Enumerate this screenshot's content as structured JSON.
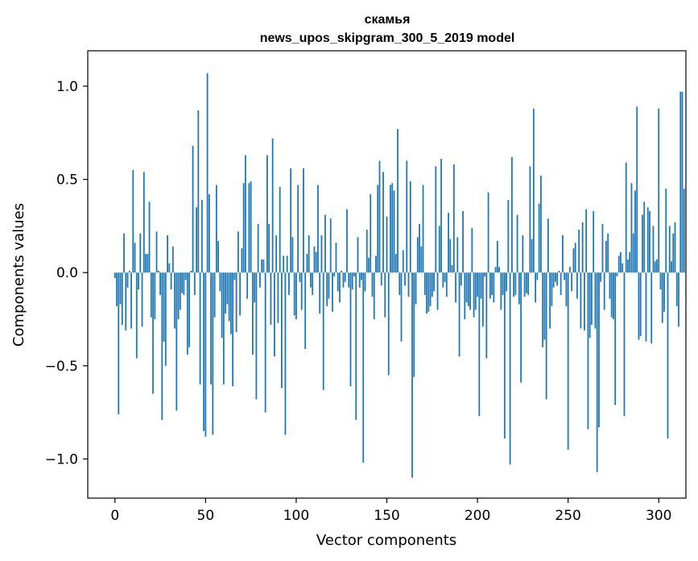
{
  "chart_data": {
    "type": "bar",
    "title": "скамья",
    "subtitle": "news_upos_skipgram_300_5_2019 model",
    "xlabel": "Vector components",
    "ylabel": "Components values",
    "xlim": [
      -15,
      315
    ],
    "ylim": [
      -1.21,
      1.19
    ],
    "xticks": [
      0,
      50,
      100,
      150,
      200,
      250,
      300
    ],
    "yticks": [
      1.0,
      0.5,
      0.0,
      -0.5,
      -1.0
    ],
    "ytick_labels": [
      "1.0",
      "0.5",
      "0.0",
      "−0.5",
      "−1.0"
    ],
    "grid": false,
    "legend": "none",
    "bar_color": "#1f77b4",
    "values": [
      -0.03,
      -0.18,
      -0.76,
      -0.17,
      -0.28,
      0.21,
      -0.31,
      -0.08,
      0.01,
      -0.3,
      0.55,
      0.16,
      -0.46,
      -0.09,
      0.21,
      -0.29,
      0.54,
      0.1,
      0.1,
      0.38,
      -0.24,
      -0.65,
      -0.25,
      0.22,
      0.01,
      -0.12,
      -0.79,
      -0.37,
      -0.5,
      0.2,
      0.05,
      -0.09,
      0.14,
      -0.3,
      -0.74,
      -0.25,
      -0.2,
      -0.11,
      -0.12,
      -0.04,
      -0.44,
      -0.4,
      0.01,
      0.68,
      -0.12,
      0.35,
      0.87,
      -0.6,
      0.39,
      -0.85,
      -0.88,
      1.07,
      0.42,
      -0.6,
      -0.87,
      -0.24,
      0.47,
      0.17,
      -0.1,
      -0.35,
      -0.6,
      -0.22,
      -0.17,
      -0.26,
      -0.33,
      -0.61,
      -0.04,
      -0.32,
      0.22,
      -0.23,
      0.13,
      0.48,
      0.63,
      -0.14,
      0.48,
      0.49,
      -0.44,
      -0.16,
      -0.68,
      0.26,
      -0.08,
      0.07,
      0.07,
      -0.75,
      0.63,
      0.26,
      -0.28,
      0.72,
      -0.45,
      0.2,
      -0.27,
      0.46,
      -0.62,
      0.09,
      -0.87,
      0.09,
      -0.12,
      0.56,
      0.19,
      -0.23,
      -0.25,
      0.47,
      -0.05,
      -0.2,
      0.56,
      -0.41,
      0.1,
      0.2,
      -0.08,
      -0.12,
      0.14,
      0.11,
      0.47,
      -0.22,
      0.2,
      -0.63,
      0.31,
      -0.18,
      -0.14,
      0.29,
      -0.21,
      -0.02,
      0.16,
      -0.1,
      -0.16,
      0.01,
      -0.08,
      -0.05,
      0.34,
      -0.08,
      -0.61,
      -0.09,
      -0.02,
      -0.79,
      0.19,
      -0.08,
      -0.04,
      -1.02,
      -0.1,
      0.23,
      0.08,
      0.42,
      -0.13,
      -0.25,
      0.09,
      0.47,
      0.6,
      -0.07,
      0.54,
      -0.24,
      0.3,
      -0.55,
      0.47,
      0.48,
      0.44,
      0.1,
      0.77,
      -0.12,
      -0.37,
      0.12,
      -0.07,
      0.6,
      -0.13,
      0.49,
      -1.1,
      -0.56,
      -0.17,
      0.19,
      0.26,
      0.14,
      0.47,
      -0.12,
      -0.22,
      -0.21,
      -0.18,
      -0.13,
      -0.1,
      0.57,
      -0.2,
      0.25,
      0.61,
      -0.08,
      -0.05,
      -0.13,
      0.32,
      0.18,
      0.04,
      0.58,
      -0.16,
      0.19,
      -0.45,
      -0.07,
      0.33,
      -0.25,
      -0.16,
      -0.18,
      -0.2,
      0.24,
      -0.24,
      -0.2,
      -0.13,
      -0.77,
      -0.14,
      -0.29,
      -0.02,
      -0.46,
      0.43,
      -0.14,
      -0.12,
      -0.16,
      0.03,
      0.17,
      0.03,
      -0.2,
      -0.12,
      -0.89,
      -0.1,
      0.39,
      -1.03,
      0.62,
      -0.13,
      -0.12,
      0.31,
      -0.17,
      -0.59,
      0.2,
      -0.13,
      -0.11,
      -0.12,
      0.57,
      0.18,
      0.88,
      -0.16,
      -0.04,
      0.37,
      0.52,
      -0.4,
      -0.36,
      -0.68,
      0.29,
      -0.3,
      -0.18,
      -0.08,
      -0.05,
      -0.07,
      0.01,
      -0.12,
      0.2,
      -0.04,
      -0.18,
      -0.95,
      0.03,
      -0.1,
      0.13,
      0.16,
      -0.14,
      0.23,
      -0.3,
      0.27,
      -0.31,
      0.34,
      -0.84,
      -0.35,
      -0.28,
      0.33,
      -0.3,
      -1.07,
      -0.83,
      -0.05,
      0.26,
      -0.2,
      0.17,
      0.21,
      -0.14,
      -0.24,
      -0.25,
      -0.71,
      -0.02,
      0.09,
      0.11,
      0.05,
      -0.77,
      0.59,
      0.07,
      0.11,
      0.48,
      0.21,
      0.44,
      0.89,
      -0.36,
      -0.34,
      0.31,
      0.38,
      -0.37,
      0.35,
      0.33,
      -0.38,
      0.25,
      0.06,
      0.07,
      0.88,
      -0.09,
      -0.27,
      -0.21,
      0.45,
      -0.89,
      0.25,
      0.06,
      0.21,
      0.27,
      -0.18,
      -0.29,
      0.97,
      0.97,
      0.45
    ]
  }
}
